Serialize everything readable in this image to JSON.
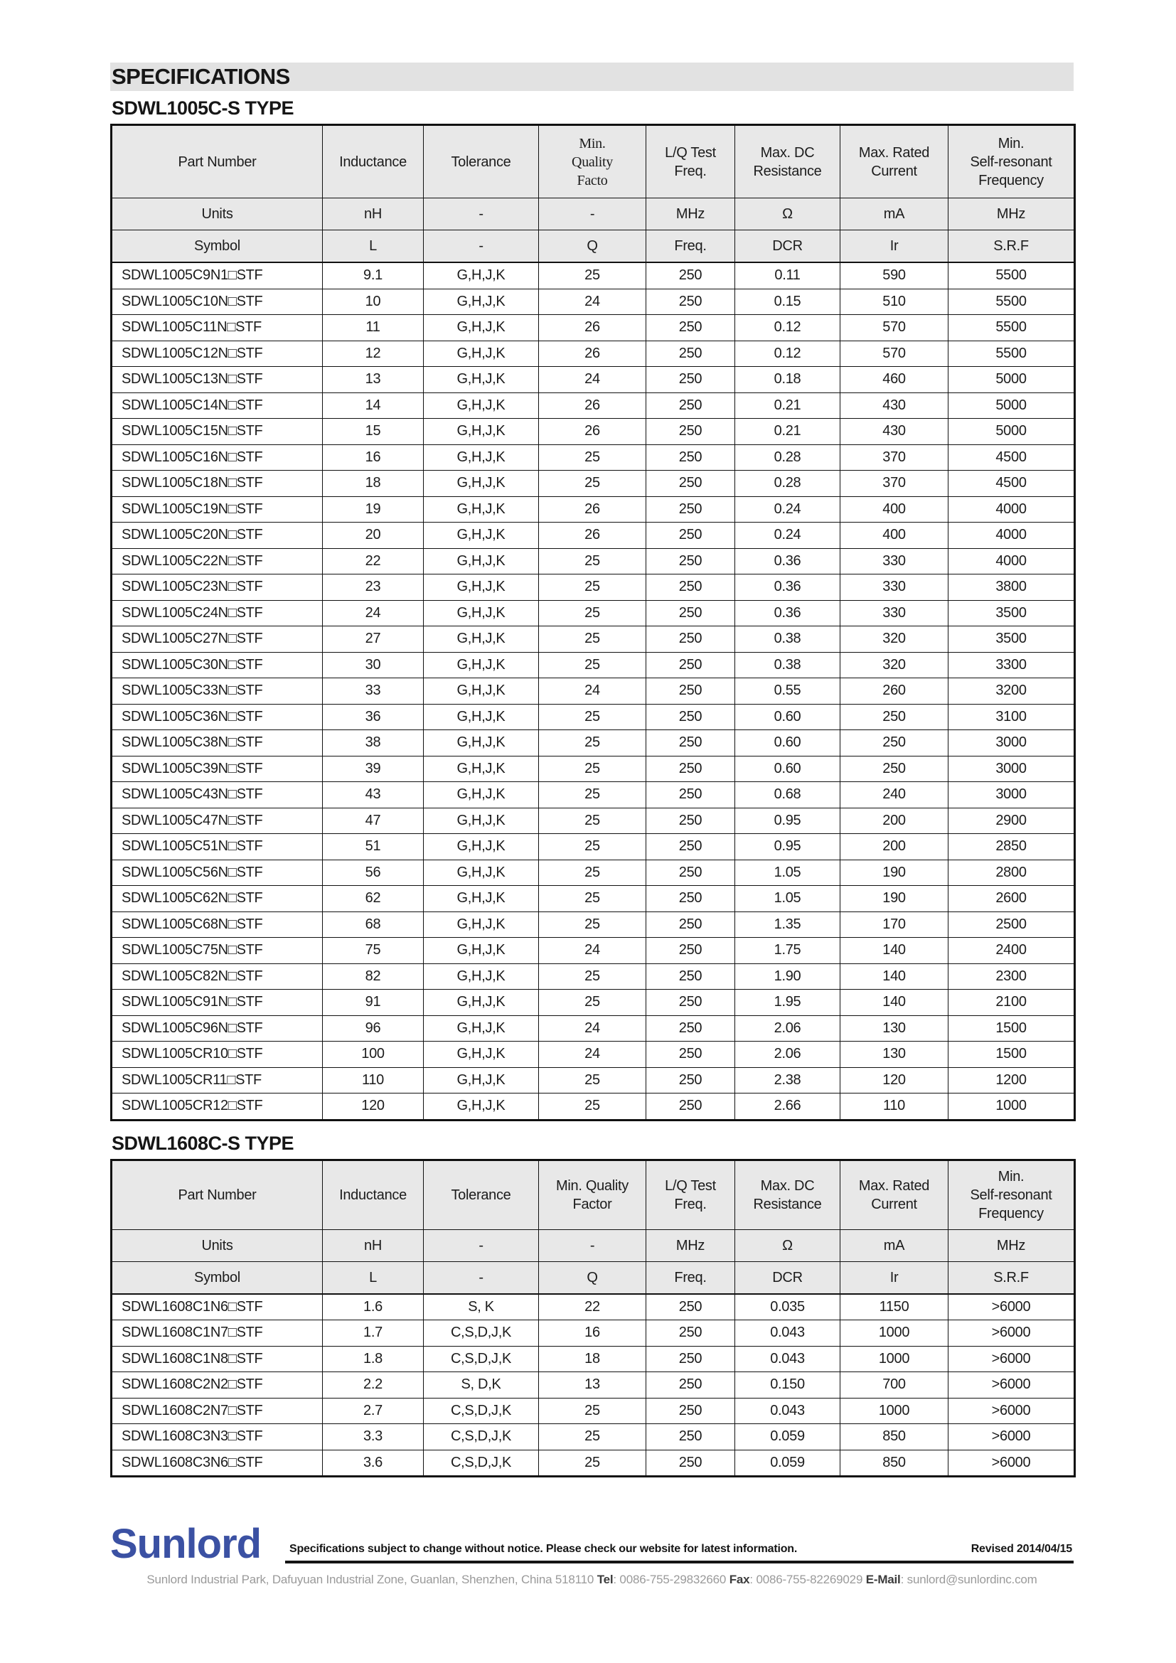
{
  "page_title": "SPECIFICATIONS",
  "tables": [
    {
      "title": "SDWL1005C-S TYPE",
      "headers": [
        "Part Number",
        "Inductance",
        "Tolerance",
        "Min.\nQuality\nFacto",
        "L/Q Test\nFreq.",
        "Max. DC\nResistance",
        "Max. Rated\nCurrent",
        "Min.\nSelf-resonant\nFrequency"
      ],
      "units": [
        "Units",
        "nH",
        "-",
        "-",
        "MHz",
        "Ω",
        "mA",
        "MHz"
      ],
      "symbols": [
        "Symbol",
        "L",
        "-",
        "Q",
        "Freq.",
        "DCR",
        "Ir",
        "S.R.F"
      ],
      "rows": [
        [
          "SDWL1005C9N1□STF",
          "9.1",
          "G,H,J,K",
          "25",
          "250",
          "0.11",
          "590",
          "5500"
        ],
        [
          "SDWL1005C10N□STF",
          "10",
          "G,H,J,K",
          "24",
          "250",
          "0.15",
          "510",
          "5500"
        ],
        [
          "SDWL1005C11N□STF",
          "11",
          "G,H,J,K",
          "26",
          "250",
          "0.12",
          "570",
          "5500"
        ],
        [
          "SDWL1005C12N□STF",
          "12",
          "G,H,J,K",
          "26",
          "250",
          "0.12",
          "570",
          "5500"
        ],
        [
          "SDWL1005C13N□STF",
          "13",
          "G,H,J,K",
          "24",
          "250",
          "0.18",
          "460",
          "5000"
        ],
        [
          "SDWL1005C14N□STF",
          "14",
          "G,H,J,K",
          "26",
          "250",
          "0.21",
          "430",
          "5000"
        ],
        [
          "SDWL1005C15N□STF",
          "15",
          "G,H,J,K",
          "26",
          "250",
          "0.21",
          "430",
          "5000"
        ],
        [
          "SDWL1005C16N□STF",
          "16",
          "G,H,J,K",
          "25",
          "250",
          "0.28",
          "370",
          "4500"
        ],
        [
          "SDWL1005C18N□STF",
          "18",
          "G,H,J,K",
          "25",
          "250",
          "0.28",
          "370",
          "4500"
        ],
        [
          "SDWL1005C19N□STF",
          "19",
          "G,H,J,K",
          "26",
          "250",
          "0.24",
          "400",
          "4000"
        ],
        [
          "SDWL1005C20N□STF",
          "20",
          "G,H,J,K",
          "26",
          "250",
          "0.24",
          "400",
          "4000"
        ],
        [
          "SDWL1005C22N□STF",
          "22",
          "G,H,J,K",
          "25",
          "250",
          "0.36",
          "330",
          "4000"
        ],
        [
          "SDWL1005C23N□STF",
          "23",
          "G,H,J,K",
          "25",
          "250",
          "0.36",
          "330",
          "3800"
        ],
        [
          "SDWL1005C24N□STF",
          "24",
          "G,H,J,K",
          "25",
          "250",
          "0.36",
          "330",
          "3500"
        ],
        [
          "SDWL1005C27N□STF",
          "27",
          "G,H,J,K",
          "25",
          "250",
          "0.38",
          "320",
          "3500"
        ],
        [
          "SDWL1005C30N□STF",
          "30",
          "G,H,J,K",
          "25",
          "250",
          "0.38",
          "320",
          "3300"
        ],
        [
          "SDWL1005C33N□STF",
          "33",
          "G,H,J,K",
          "24",
          "250",
          "0.55",
          "260",
          "3200"
        ],
        [
          "SDWL1005C36N□STF",
          "36",
          "G,H,J,K",
          "25",
          "250",
          "0.60",
          "250",
          "3100"
        ],
        [
          "SDWL1005C38N□STF",
          "38",
          "G,H,J,K",
          "25",
          "250",
          "0.60",
          "250",
          "3000"
        ],
        [
          "SDWL1005C39N□STF",
          "39",
          "G,H,J,K",
          "25",
          "250",
          "0.60",
          "250",
          "3000"
        ],
        [
          "SDWL1005C43N□STF",
          "43",
          "G,H,J,K",
          "25",
          "250",
          "0.68",
          "240",
          "3000"
        ],
        [
          "SDWL1005C47N□STF",
          "47",
          "G,H,J,K",
          "25",
          "250",
          "0.95",
          "200",
          "2900"
        ],
        [
          "SDWL1005C51N□STF",
          "51",
          "G,H,J,K",
          "25",
          "250",
          "0.95",
          "200",
          "2850"
        ],
        [
          "SDWL1005C56N□STF",
          "56",
          "G,H,J,K",
          "25",
          "250",
          "1.05",
          "190",
          "2800"
        ],
        [
          "SDWL1005C62N□STF",
          "62",
          "G,H,J,K",
          "25",
          "250",
          "1.05",
          "190",
          "2600"
        ],
        [
          "SDWL1005C68N□STF",
          "68",
          "G,H,J,K",
          "25",
          "250",
          "1.35",
          "170",
          "2500"
        ],
        [
          "SDWL1005C75N□STF",
          "75",
          "G,H,J,K",
          "24",
          "250",
          "1.75",
          "140",
          "2400"
        ],
        [
          "SDWL1005C82N□STF",
          "82",
          "G,H,J,K",
          "25",
          "250",
          "1.90",
          "140",
          "2300"
        ],
        [
          "SDWL1005C91N□STF",
          "91",
          "G,H,J,K",
          "25",
          "250",
          "1.95",
          "140",
          "2100"
        ],
        [
          "SDWL1005C96N□STF",
          "96",
          "G,H,J,K",
          "24",
          "250",
          "2.06",
          "130",
          "1500"
        ],
        [
          "SDWL1005CR10□STF",
          "100",
          "G,H,J,K",
          "24",
          "250",
          "2.06",
          "130",
          "1500"
        ],
        [
          "SDWL1005CR11□STF",
          "110",
          "G,H,J,K",
          "25",
          "250",
          "2.38",
          "120",
          "1200"
        ],
        [
          "SDWL1005CR12□STF",
          "120",
          "G,H,J,K",
          "25",
          "250",
          "2.66",
          "110",
          "1000"
        ]
      ]
    },
    {
      "title": "SDWL1608C-S TYPE",
      "headers": [
        "Part Number",
        "Inductance",
        "Tolerance",
        "Min. Quality\nFactor",
        "L/Q Test\nFreq.",
        "Max. DC\nResistance",
        "Max. Rated\nCurrent",
        "Min.\nSelf-resonant\nFrequency"
      ],
      "units": [
        "Units",
        "nH",
        "-",
        "-",
        "MHz",
        "Ω",
        "mA",
        "MHz"
      ],
      "symbols": [
        "Symbol",
        "L",
        "-",
        "Q",
        "Freq.",
        "DCR",
        "Ir",
        "S.R.F"
      ],
      "rows": [
        [
          "SDWL1608C1N6□STF",
          "1.6",
          "S, K",
          "22",
          "250",
          "0.035",
          "1150",
          ">6000"
        ],
        [
          "SDWL1608C1N7□STF",
          "1.7",
          "C,S,D,J,K",
          "16",
          "250",
          "0.043",
          "1000",
          ">6000"
        ],
        [
          "SDWL1608C1N8□STF",
          "1.8",
          "C,S,D,J,K",
          "18",
          "250",
          "0.043",
          "1000",
          ">6000"
        ],
        [
          "SDWL1608C2N2□STF",
          "2.2",
          "S, D,K",
          "13",
          "250",
          "0.150",
          "700",
          ">6000"
        ],
        [
          "SDWL1608C2N7□STF",
          "2.7",
          "C,S,D,J,K",
          "25",
          "250",
          "0.043",
          "1000",
          ">6000"
        ],
        [
          "SDWL1608C3N3□STF",
          "3.3",
          "C,S,D,J,K",
          "25",
          "250",
          "0.059",
          "850",
          ">6000"
        ],
        [
          "SDWL1608C3N6□STF",
          "3.6",
          "C,S,D,J,K",
          "25",
          "250",
          "0.059",
          "850",
          ">6000"
        ]
      ]
    }
  ],
  "footer": {
    "logo": "Sunlord",
    "notice": "Specifications subject to change without notice. Please check our website for latest information.",
    "revised": "Revised 2014/04/15",
    "address": "Sunlord Industrial Park, Dafuyuan Industrial Zone, Guanlan, Shenzhen, China 518110 ",
    "tel_label": "Tel",
    "tel_value": ": 0086-755-29832660 ",
    "fax_label": "Fax",
    "fax_value": ": 0086-755-82269029 ",
    "email_label": "E-Mail",
    "email_value": ": sunlord@sunlordinc.com"
  }
}
